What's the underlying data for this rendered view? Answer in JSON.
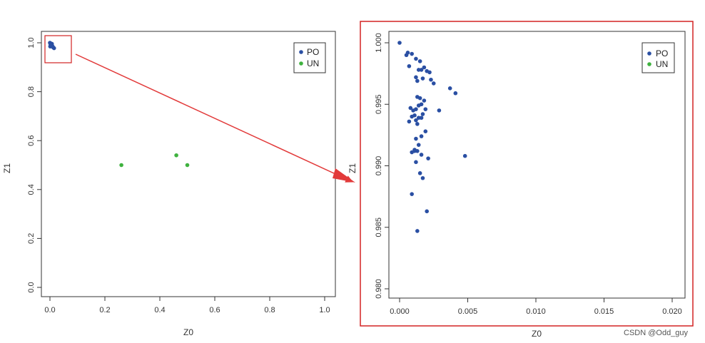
{
  "watermark": "CSDN @Odd_guy",
  "colors": {
    "po": "#2a4fa3",
    "un": "#3fb23f",
    "highlight": "#d32222",
    "axis": "#333333"
  },
  "chart_data": [
    {
      "type": "scatter",
      "xlabel": "Z0",
      "ylabel": "Z1",
      "xlim": [
        0,
        1.0
      ],
      "ylim": [
        0,
        1.0
      ],
      "xticks": [
        0.0,
        0.2,
        0.4,
        0.6,
        0.8,
        1.0
      ],
      "yticks": [
        0.0,
        0.2,
        0.4,
        0.6,
        0.8,
        1.0
      ],
      "xtick_labels": [
        "0.0",
        "0.2",
        "0.4",
        "0.6",
        "0.8",
        "1.0"
      ],
      "ytick_labels": [
        "0.0",
        "0.2",
        "0.4",
        "0.6",
        "0.8",
        "1.0"
      ],
      "legend": {
        "position": "top-right",
        "entries": [
          "PO",
          "UN"
        ]
      },
      "grid": false,
      "series": [
        {
          "name": "PO",
          "color": "#2a4fa3",
          "points": [
            [
              0.0,
              1.0
            ],
            [
              0.002,
              0.998
            ],
            [
              0.004,
              0.995
            ],
            [
              0.003,
              0.99
            ],
            [
              0.006,
              0.993
            ],
            [
              0.008,
              0.988
            ],
            [
              0.001,
              0.985
            ],
            [
              0.005,
              0.992
            ],
            [
              0.007,
              0.996
            ],
            [
              0.0045,
              0.99
            ],
            [
              0.015,
              0.978
            ],
            [
              0.012,
              0.981
            ],
            [
              0.01,
              0.984
            ],
            [
              0.002,
              0.994
            ]
          ]
        },
        {
          "name": "UN",
          "color": "#3fb23f",
          "points": [
            [
              0.26,
              0.5
            ],
            [
              0.46,
              0.54
            ],
            [
              0.5,
              0.5
            ]
          ]
        }
      ]
    },
    {
      "type": "scatter",
      "xlabel": "Z0",
      "ylabel": "Z1",
      "xlim": [
        0,
        0.02
      ],
      "ylim": [
        0.98,
        1.0
      ],
      "xticks": [
        0.0,
        0.005,
        0.01,
        0.015,
        0.02
      ],
      "yticks": [
        0.98,
        0.985,
        0.99,
        0.995,
        1.0
      ],
      "xtick_labels": [
        "0.000",
        "0.005",
        "0.010",
        "0.015",
        "0.020"
      ],
      "ytick_labels": [
        "0.980",
        "0.985",
        "0.990",
        "0.995",
        "1.000"
      ],
      "legend": {
        "position": "top-right",
        "entries": [
          "PO",
          "UN"
        ]
      },
      "grid": false,
      "series": [
        {
          "name": "PO",
          "color": "#2a4fa3",
          "points": [
            [
              0.0,
              1.0
            ],
            [
              0.0006,
              0.9992
            ],
            [
              0.0009,
              0.9991
            ],
            [
              0.0005,
              0.999
            ],
            [
              0.0012,
              0.9987
            ],
            [
              0.0015,
              0.9985
            ],
            [
              0.0018,
              0.998
            ],
            [
              0.0022,
              0.9976
            ],
            [
              0.0007,
              0.9981
            ],
            [
              0.0014,
              0.9978
            ],
            [
              0.0016,
              0.9978
            ],
            [
              0.002,
              0.9977
            ],
            [
              0.0012,
              0.9972
            ],
            [
              0.0017,
              0.9971
            ],
            [
              0.0013,
              0.9969
            ],
            [
              0.0023,
              0.997
            ],
            [
              0.0025,
              0.9967
            ],
            [
              0.0037,
              0.9963
            ],
            [
              0.0041,
              0.9959
            ],
            [
              0.0013,
              0.9956
            ],
            [
              0.0015,
              0.9955
            ],
            [
              0.0018,
              0.9953
            ],
            [
              0.0016,
              0.995
            ],
            [
              0.0014,
              0.9949
            ],
            [
              0.0008,
              0.9947
            ],
            [
              0.0012,
              0.9946
            ],
            [
              0.0019,
              0.9946
            ],
            [
              0.0029,
              0.9945
            ],
            [
              0.001,
              0.9945
            ],
            [
              0.0011,
              0.9941
            ],
            [
              0.0017,
              0.9942
            ],
            [
              0.0009,
              0.994
            ],
            [
              0.0014,
              0.9939
            ],
            [
              0.0016,
              0.9939
            ],
            [
              0.0012,
              0.9937
            ],
            [
              0.0007,
              0.9936
            ],
            [
              0.0013,
              0.9934
            ],
            [
              0.0019,
              0.9928
            ],
            [
              0.0016,
              0.9924
            ],
            [
              0.0012,
              0.9922
            ],
            [
              0.0014,
              0.9917
            ],
            [
              0.0013,
              0.9912
            ],
            [
              0.0011,
              0.9912
            ],
            [
              0.0009,
              0.9911
            ],
            [
              0.0016,
              0.9909
            ],
            [
              0.0048,
              0.9908
            ],
            [
              0.0021,
              0.9906
            ],
            [
              0.0012,
              0.9903
            ],
            [
              0.0015,
              0.9894
            ],
            [
              0.0017,
              0.989
            ],
            [
              0.0009,
              0.9877
            ],
            [
              0.002,
              0.9863
            ],
            [
              0.0013,
              0.9847
            ],
            [
              0.0011,
              0.9913
            ]
          ]
        },
        {
          "name": "UN",
          "color": "#3fb23f",
          "points": []
        }
      ]
    }
  ]
}
